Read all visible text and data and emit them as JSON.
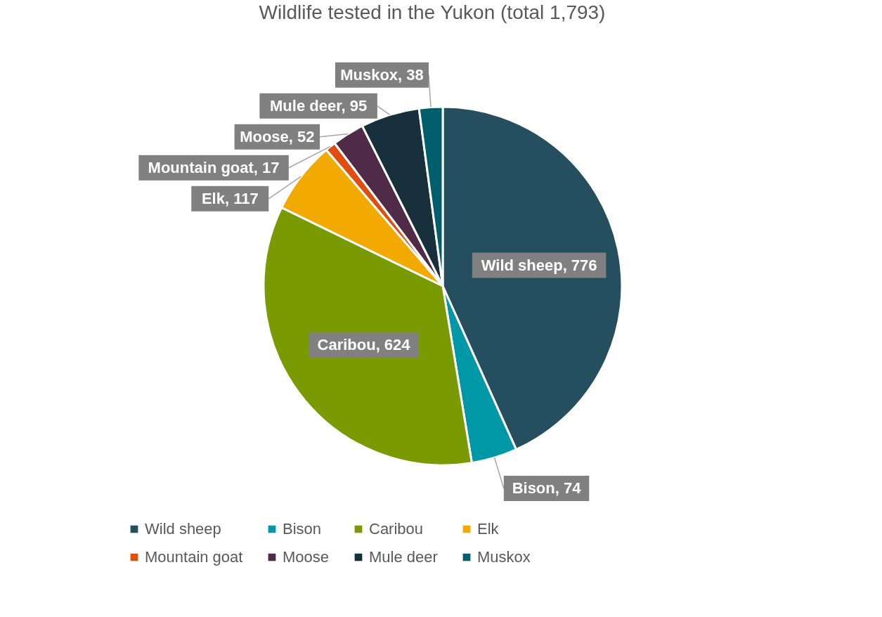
{
  "chart_data": {
    "type": "pie",
    "title": "Wildlife tested in the Yukon (total 1,793)",
    "categories": [
      "Wild sheep",
      "Bison",
      "Caribou",
      "Elk",
      "Mountain goat",
      "Moose",
      "Mule deer",
      "Muskox"
    ],
    "values": [
      776,
      74,
      624,
      117,
      17,
      52,
      95,
      38
    ],
    "colors": [
      "#254e5e",
      "#0097a7",
      "#7a9a01",
      "#f2a900",
      "#e04e0f",
      "#4f2b47",
      "#17303b",
      "#005f6b"
    ],
    "value_labels": [
      "Wild sheep, 776",
      "Bison, 74",
      "Caribou, 624",
      "Elk, 117",
      "Mountain goat, 17",
      "Moose, 52",
      "Mule deer, 95",
      "Muskox, 38"
    ],
    "legend": "bottom"
  }
}
